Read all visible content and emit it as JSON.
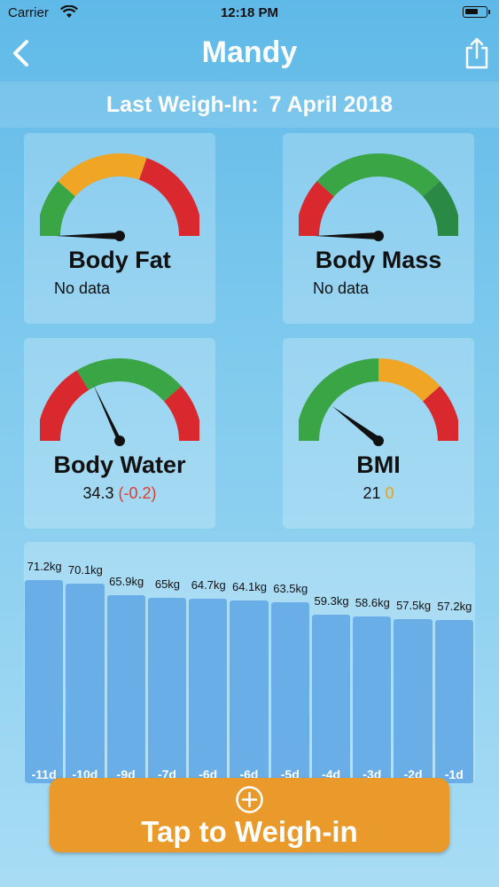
{
  "status": {
    "carrier": "Carrier",
    "time": "12:18 PM"
  },
  "nav": {
    "title": "Mandy"
  },
  "weighin": {
    "label": "Last Weigh-In:",
    "date": "7 April 2018"
  },
  "cards": {
    "body_fat": {
      "label": "Body Fat",
      "value": "No data",
      "needle_fraction": 0.02
    },
    "body_mass": {
      "label": "Body Mass",
      "value": "No data",
      "needle_fraction": 0.02
    },
    "body_water": {
      "label": "Body Water",
      "value": "34.3",
      "change": "(-0.2)",
      "needle_fraction": 0.38
    },
    "bmi": {
      "label": "BMI",
      "value": "21",
      "change": "0",
      "needle_fraction": 0.25
    }
  },
  "colors": {
    "green": "#3aa545",
    "orange": "#f0a524",
    "red": "#d9282e",
    "dark_green": "#2a8a45",
    "bar": "#6aaee8",
    "button": "#e99a2a"
  },
  "chart_data": {
    "type": "bar",
    "categories": [
      "-11d",
      "-10d",
      "-9d",
      "-7d",
      "-6d",
      "-6d",
      "-5d",
      "-4d",
      "-3d",
      "-2d",
      "-1d"
    ],
    "value_labels": [
      "71.2kg",
      "70.1kg",
      "65.9kg",
      "65kg",
      "64.7kg",
      "64.1kg",
      "63.5kg",
      "59.3kg",
      "58.6kg",
      "57.5kg",
      "57.2kg"
    ],
    "values": [
      71.2,
      70.1,
      65.9,
      65,
      64.7,
      64.1,
      63.5,
      59.3,
      58.6,
      57.5,
      57.2
    ],
    "ylim": [
      0,
      80
    ]
  },
  "weigh_button": {
    "label": "Tap to Weigh-in"
  }
}
